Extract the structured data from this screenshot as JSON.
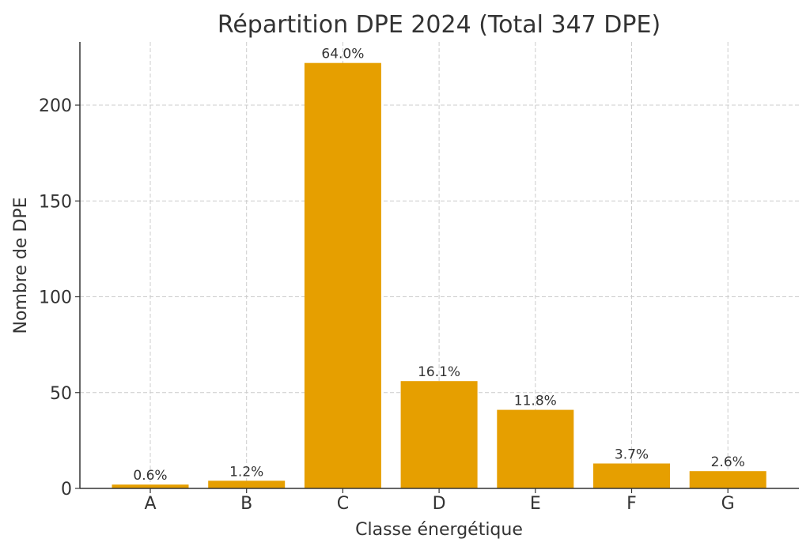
{
  "chart_data": {
    "type": "bar",
    "title": "Répartition DPE 2024 (Total 347 DPE)",
    "xlabel": "Classe énergétique",
    "ylabel": "Nombre de DPE",
    "categories": [
      "A",
      "B",
      "C",
      "D",
      "E",
      "F",
      "G"
    ],
    "values": [
      2,
      4,
      222,
      56,
      41,
      13,
      9
    ],
    "data_labels": [
      "0.6%",
      "1.2%",
      "64.0%",
      "16.1%",
      "11.8%",
      "3.7%",
      "2.6%"
    ],
    "yticks": [
      0,
      50,
      100,
      150,
      200
    ],
    "ylim": [
      0,
      233
    ],
    "grid": true,
    "bar_color": "#E69F00"
  }
}
